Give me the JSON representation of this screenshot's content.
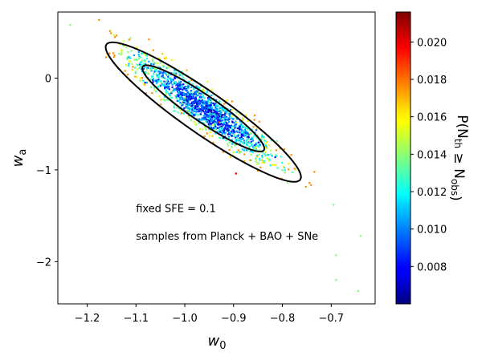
{
  "chart_data": {
    "type": "scatter",
    "xlabel": "w0",
    "ylabel": "wa",
    "xlim": [
      -1.26,
      -0.61
    ],
    "ylim": [
      -2.46,
      0.72
    ],
    "xticks": [
      -1.2,
      -1.1,
      -1.0,
      -0.9,
      -0.8,
      -0.7
    ],
    "xtick_labels": [
      "−1.2",
      "−1.1",
      "−1.0",
      "−0.9",
      "−0.8",
      "−0.7"
    ],
    "yticks": [
      0,
      -1,
      -2
    ],
    "ytick_labels": [
      "0",
      "−1",
      "−2"
    ],
    "colorbar": {
      "label": "P(N_th ≥ N_obs)",
      "range": [
        0.006,
        0.0216
      ],
      "ticks": [
        0.008,
        0.01,
        0.012,
        0.014,
        0.016,
        0.018,
        0.02
      ],
      "tick_labels": [
        "0.008",
        "0.010",
        "0.012",
        "0.014",
        "0.016",
        "0.018",
        "0.020"
      ],
      "colormap": "jet"
    },
    "annotations": [
      {
        "text": "fixed SFE  = 0.1",
        "x": -1.1,
        "y": -1.46
      },
      {
        "text": "samples from Planck + BAO + SNe",
        "x": -1.1,
        "y": -1.76
      }
    ],
    "contours": [
      {
        "name": "inner",
        "center": [
          -0.962,
          -0.33
        ],
        "half_axis_x": 0.125,
        "half_axis_y": 0.47
      },
      {
        "name": "outer",
        "center": [
          -0.962,
          -0.37
        ],
        "half_axis_x": 0.2,
        "half_axis_y": 0.76
      }
    ],
    "samples": {
      "count": 1500,
      "center": [
        -0.96,
        -0.33
      ],
      "correlation": -0.93,
      "sigma_w0": 0.075,
      "sigma_wa": 0.3
    },
    "extreme_points": [
      {
        "x": -1.235,
        "y": 0.58
      },
      {
        "x": -0.64,
        "y": -1.72
      },
      {
        "x": -0.645,
        "y": -2.32
      },
      {
        "x": -0.69,
        "y": -2.2
      },
      {
        "x": -0.69,
        "y": -1.93
      },
      {
        "x": -0.695,
        "y": -1.38
      }
    ],
    "highlight_points": [
      {
        "x": -1.08,
        "y": -0.17,
        "p": 0.0205
      },
      {
        "x": -0.895,
        "y": -1.04,
        "p": 0.0195
      },
      {
        "x": -0.93,
        "y": -0.48,
        "p": 0.019
      }
    ]
  }
}
